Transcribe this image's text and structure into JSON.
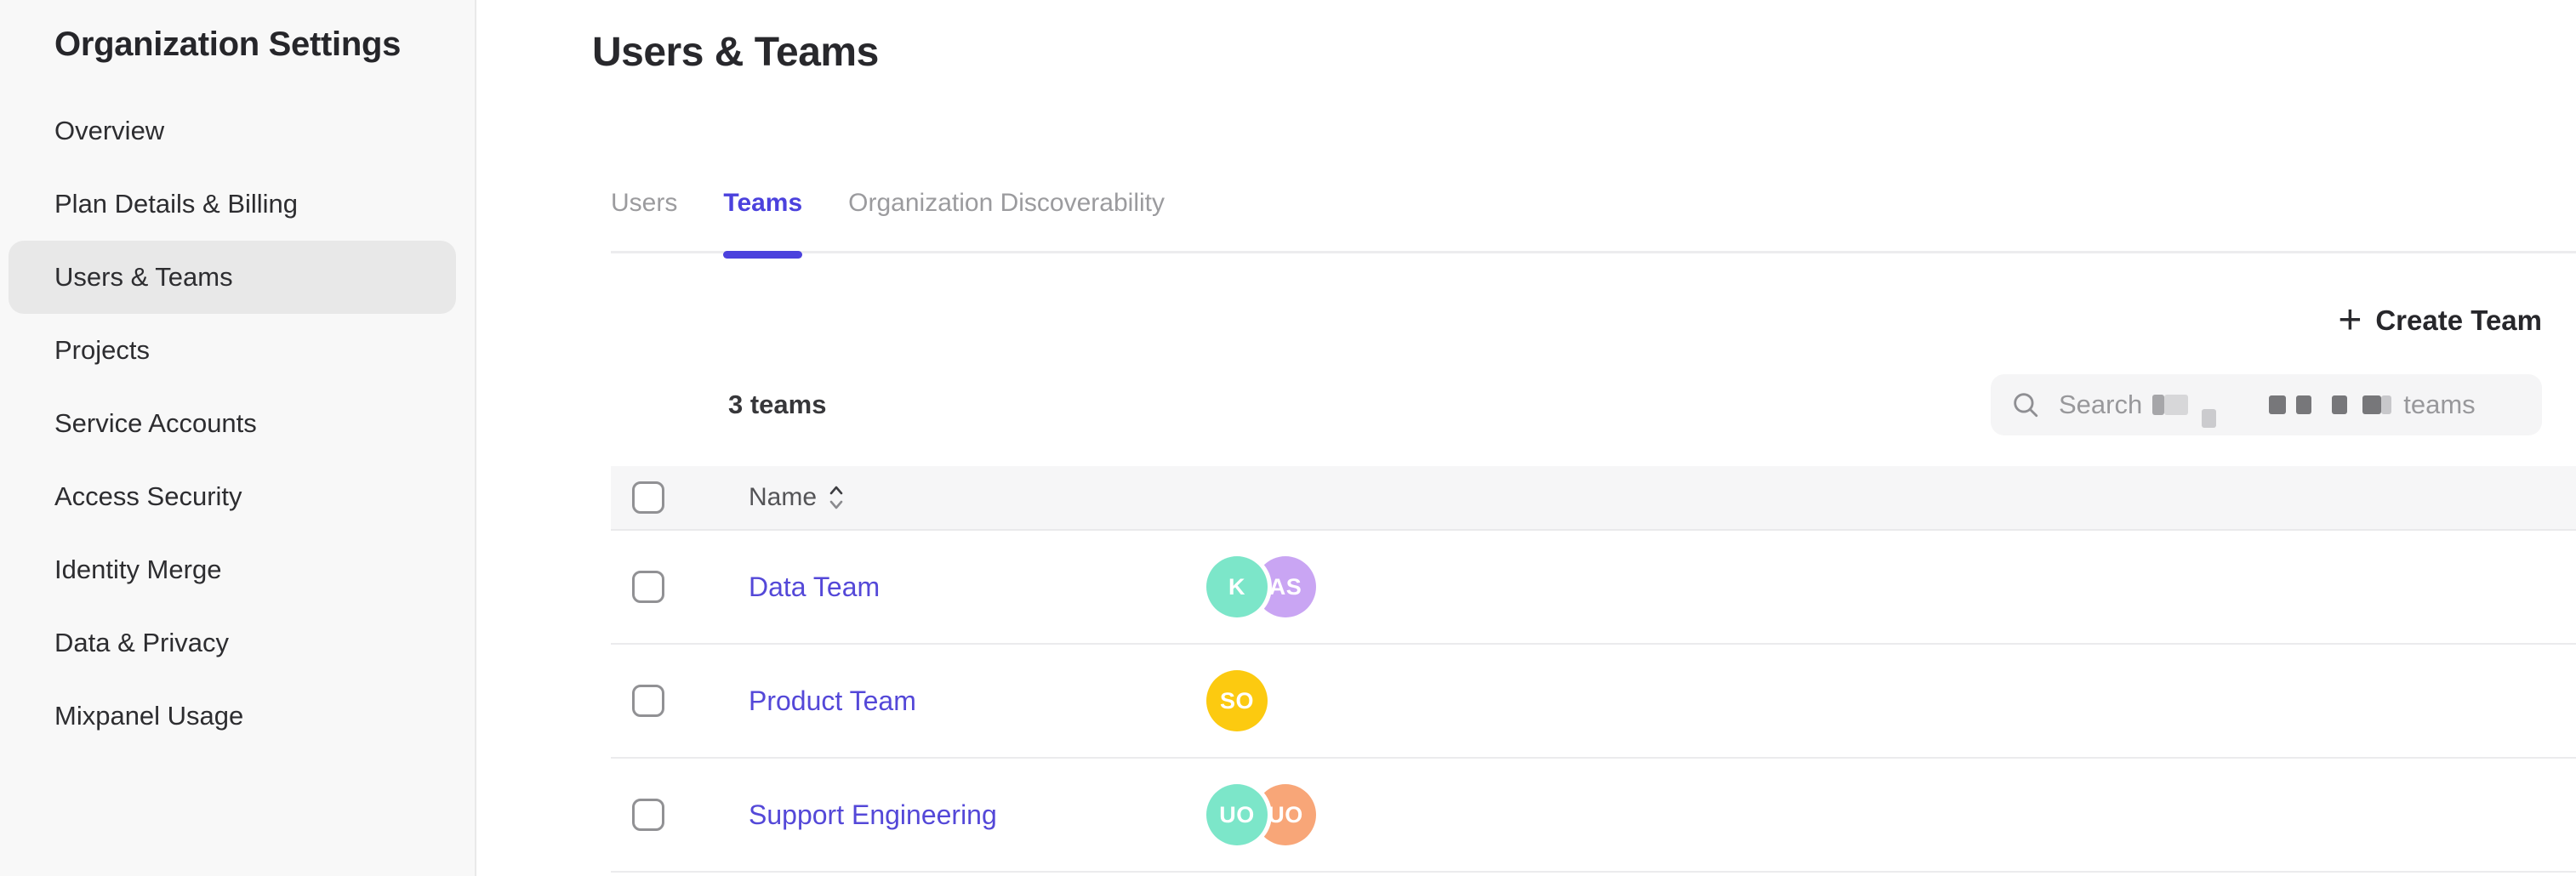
{
  "sidebar": {
    "title": "Organization Settings",
    "items": [
      {
        "label": "Overview",
        "active": false
      },
      {
        "label": "Plan Details & Billing",
        "active": false
      },
      {
        "label": "Users & Teams",
        "active": true
      },
      {
        "label": "Projects",
        "active": false
      },
      {
        "label": "Service Accounts",
        "active": false
      },
      {
        "label": "Access Security",
        "active": false
      },
      {
        "label": "Identity Merge",
        "active": false
      },
      {
        "label": "Data & Privacy",
        "active": false
      },
      {
        "label": "Mixpanel Usage",
        "active": false
      }
    ]
  },
  "main": {
    "title": "Users & Teams",
    "tabs": [
      {
        "label": "Users",
        "active": false
      },
      {
        "label": "Teams",
        "active": true
      },
      {
        "label": "Organization Discoverability",
        "active": false
      }
    ],
    "toolbar": {
      "create_team_label": "Create Team",
      "plus_glyph": "+"
    },
    "summary": {
      "count_label": "3 teams"
    },
    "search": {
      "placeholder_prefix": "Search",
      "placeholder_suffix": "teams",
      "redacted_middle": true
    },
    "table": {
      "columns": [
        {
          "label": "Name",
          "sortable": true
        }
      ],
      "rows": [
        {
          "name": "Data Team",
          "members": [
            {
              "initials": "K",
              "color": "#7ce6c9"
            },
            {
              "initials": "AS",
              "color": "#c9a5f3"
            }
          ]
        },
        {
          "name": "Product Team",
          "members": [
            {
              "initials": "SO",
              "color": "#fcca10"
            }
          ]
        },
        {
          "name": "Support Engineering",
          "members": [
            {
              "initials": "UO",
              "color": "#7ce6c9"
            },
            {
              "initials": "UO",
              "color": "#f8a678"
            }
          ]
        }
      ]
    }
  },
  "colors": {
    "accent": "#4b41dd",
    "link": "#5448d8",
    "sidebar_bg": "#f8f8f8",
    "sidebar_active_bg": "#e8e8e8",
    "header_row_bg": "#f6f6f7",
    "search_bg": "#f5f5f6"
  }
}
